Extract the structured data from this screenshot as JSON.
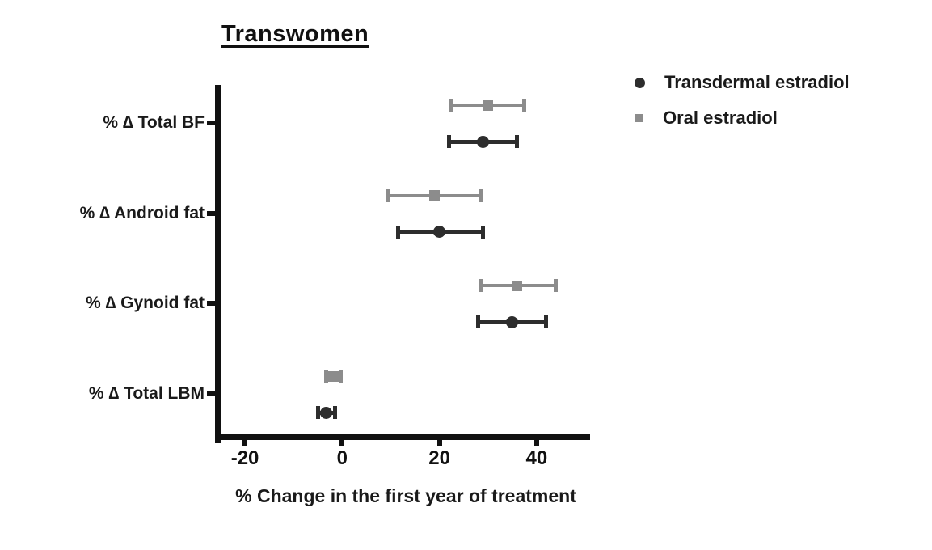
{
  "chart_data": {
    "type": "scatter",
    "subtype": "forest-plot-with-error-bars",
    "title": "Transwomen",
    "xlabel": "% Change in the first year of treatment",
    "xlim": [
      -25,
      51
    ],
    "xticks": [
      -20,
      0,
      20,
      40
    ],
    "grid": false,
    "legend_position": "top-right",
    "categories": [
      "% ∆ Total BF",
      "% ∆ Android fat",
      "% ∆ Gynoid fat",
      "% ∆ Total LBM"
    ],
    "series": [
      {
        "name": "Transdermal estradiol",
        "marker": "circle",
        "color": "#2d2d2d",
        "points": [
          {
            "category": "% ∆ Total BF",
            "value": 29,
            "ci": [
              22,
              36
            ]
          },
          {
            "category": "% ∆ Android fat",
            "value": 20,
            "ci": [
              11.5,
              29
            ]
          },
          {
            "category": "% ∆ Gynoid fat",
            "value": 35,
            "ci": [
              28,
              42
            ]
          },
          {
            "category": "% ∆ Total LBM",
            "value": -3.3,
            "ci": [
              -5,
              -1.5
            ]
          }
        ]
      },
      {
        "name": "Oral estradiol",
        "marker": "square",
        "color": "#8c8c8c",
        "points": [
          {
            "category": "% ∆ Total BF",
            "value": 30,
            "ci": [
              22.5,
              37.5
            ]
          },
          {
            "category": "% ∆ Android fat",
            "value": 19,
            "ci": [
              9.5,
              28.5
            ]
          },
          {
            "category": "% ∆ Gynoid fat",
            "value": 36,
            "ci": [
              28.5,
              44
            ]
          },
          {
            "category": "% ∆ Total LBM",
            "value": -1.8,
            "ci": [
              -3.3,
              -0.3
            ]
          }
        ]
      }
    ]
  }
}
